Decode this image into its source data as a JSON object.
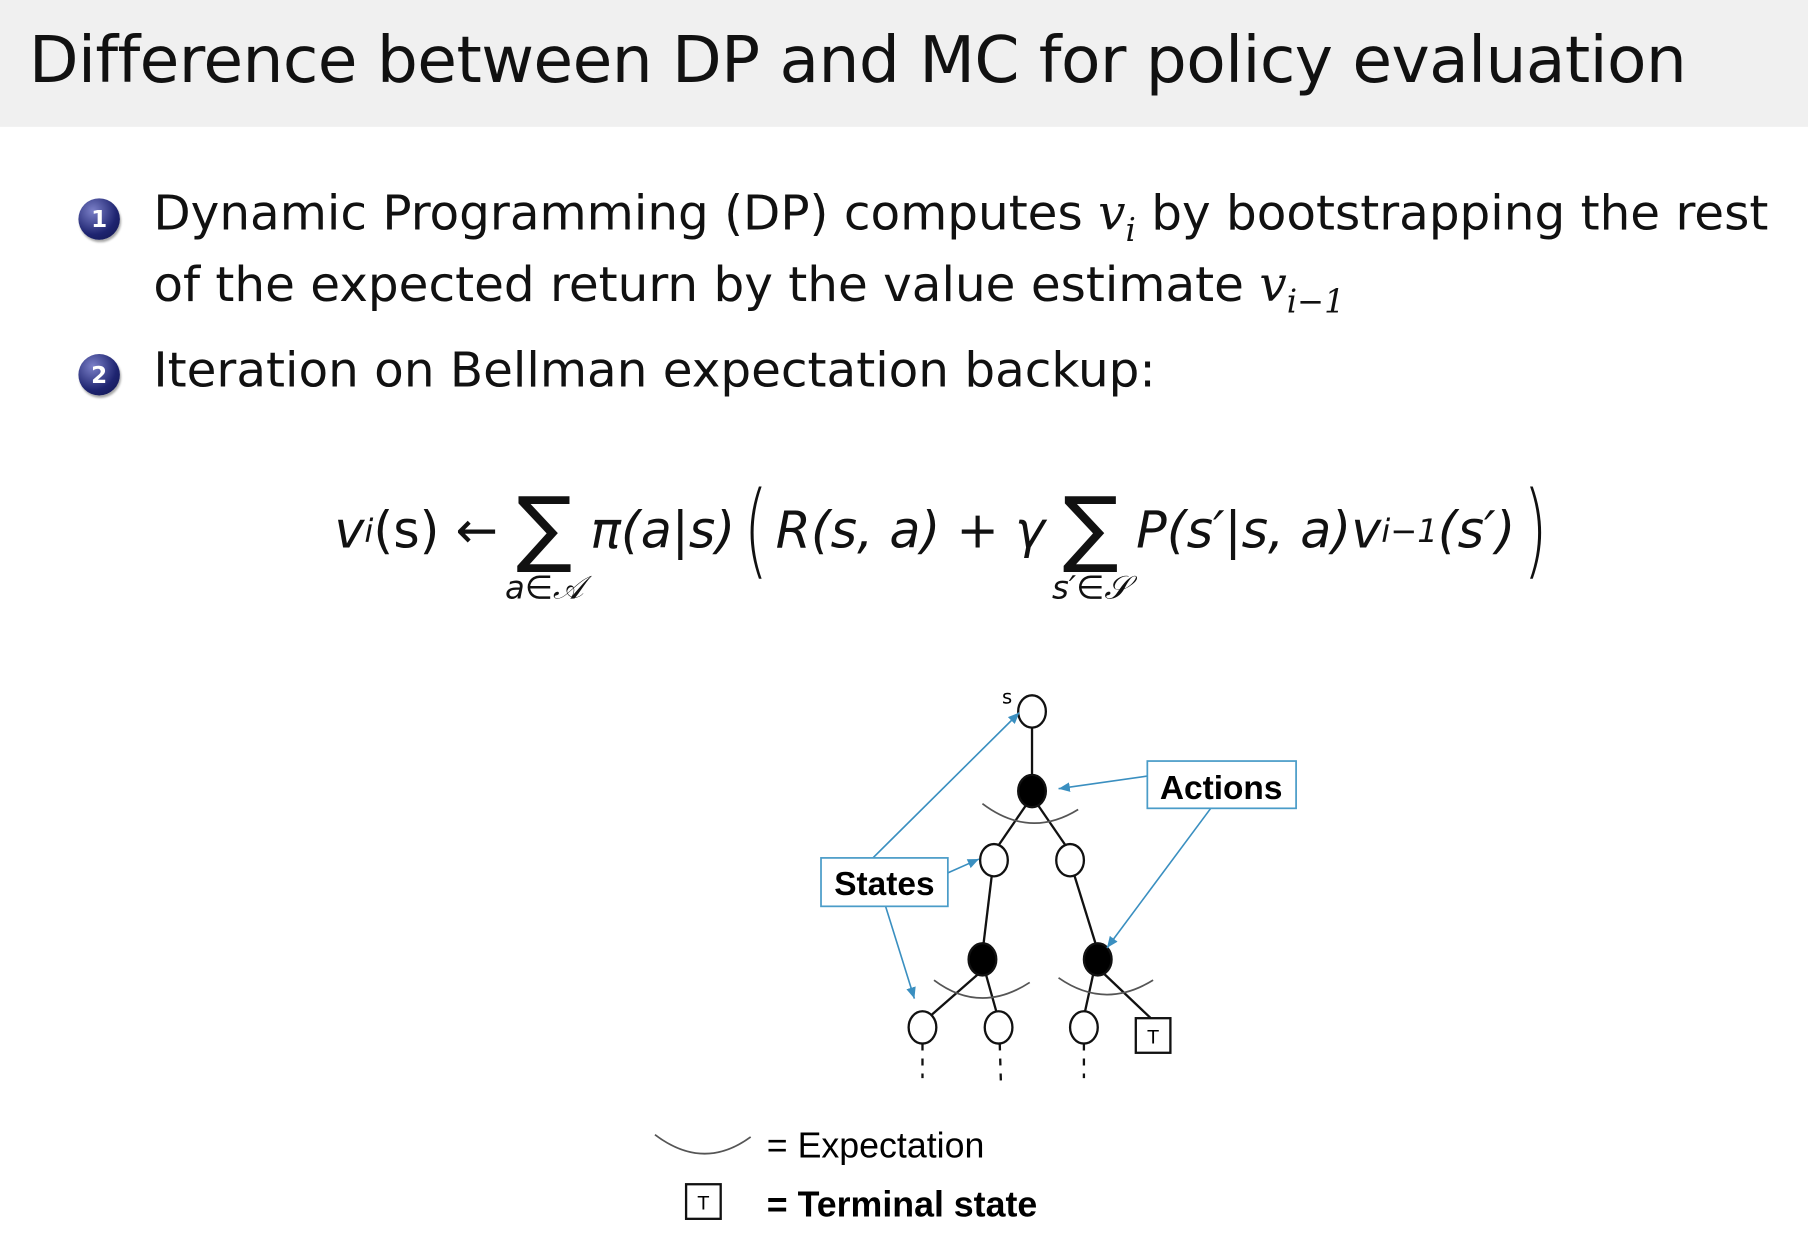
{
  "slide": {
    "title": "Difference between DP and MC for policy evaluation",
    "bullets": [
      {
        "number": "1",
        "line1_pre": "Dynamic Programming (DP) computes ",
        "line1_math": "v",
        "line1_sub": "i",
        "line1_post": " by bootstrapping the rest",
        "line2_pre": "of the expected return by the value estimate ",
        "line2_math": "v",
        "line2_sub": "i−1"
      },
      {
        "number": "2",
        "text": "Iteration on Bellman expectation backup:"
      }
    ],
    "formula": {
      "lhs": "v",
      "lhs_sub": "i",
      "lhs_arg": "(s) ←",
      "sum1_under": "a∈𝒜",
      "policy": "π(a|s)",
      "reward": "R(s, a) + γ",
      "sum2_under": "s′∈𝒮",
      "transition": "P(s′|s, a)v",
      "v_sub": "i−1",
      "v_arg": "(s′)",
      "sigma": "∑",
      "open_paren": "(",
      "close_paren": ")"
    }
  },
  "diagram": {
    "root_label": "s",
    "actions_label": "Actions",
    "states_label": "States",
    "terminal_glyph": "T",
    "legend": [
      {
        "text": "= Expectation"
      },
      {
        "text": "= Terminal state"
      }
    ],
    "colors": {
      "arrow": "#3a8fc0",
      "box_border": "#4a9cc8",
      "arc": "#555555",
      "header_bg": "#f0f0f0",
      "bullet": "#1e2470"
    }
  }
}
